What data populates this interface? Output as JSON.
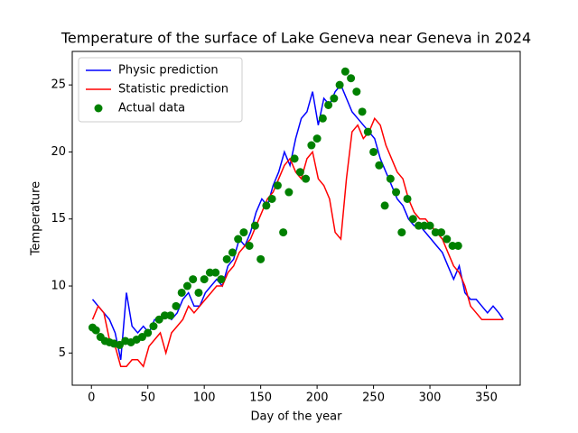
{
  "chart_data": {
    "type": "line",
    "title": "Temperature of the surface of Lake Geneva near Geneva in 2024",
    "x_label": "Day of the year",
    "y_label": "Temperature",
    "xlim": [
      -17,
      380
    ],
    "ylim": [
      2.6,
      27.5
    ],
    "xticks": [
      0,
      50,
      100,
      150,
      200,
      250,
      300,
      350
    ],
    "yticks": [
      5,
      10,
      15,
      20,
      25
    ],
    "legend": "upper left",
    "x": [
      1,
      6,
      11,
      16,
      21,
      26,
      31,
      36,
      41,
      46,
      51,
      56,
      61,
      66,
      71,
      76,
      81,
      86,
      91,
      96,
      101,
      106,
      111,
      116,
      121,
      126,
      131,
      136,
      141,
      146,
      151,
      156,
      161,
      166,
      171,
      176,
      181,
      186,
      191,
      196,
      201,
      206,
      211,
      216,
      221,
      226,
      231,
      236,
      241,
      246,
      251,
      256,
      261,
      266,
      271,
      276,
      281,
      286,
      291,
      296,
      301,
      306,
      311,
      316,
      321,
      326,
      331,
      336,
      341,
      346,
      351,
      356,
      361,
      365
    ],
    "series": [
      {
        "name": "Physic prediction",
        "color": "#0000ff",
        "values": [
          9.0,
          8.5,
          8.0,
          7.5,
          6.5,
          4.5,
          9.5,
          7.0,
          6.5,
          7.0,
          6.5,
          7.5,
          7.5,
          8.0,
          7.5,
          8.0,
          9.0,
          9.5,
          8.5,
          8.5,
          9.5,
          10.0,
          10.5,
          10.0,
          11.5,
          12.0,
          13.5,
          13.0,
          14.0,
          15.5,
          16.5,
          16.0,
          17.5,
          18.5,
          20.0,
          19.0,
          21.0,
          22.5,
          23.0,
          24.5,
          22.0,
          24.0,
          23.5,
          24.5,
          25.0,
          24.0,
          23.0,
          22.5,
          22.0,
          21.5,
          21.0,
          19.5,
          18.5,
          17.5,
          16.5,
          16.0,
          15.0,
          14.5,
          14.5,
          14.0,
          13.5,
          13.0,
          12.5,
          11.5,
          10.5,
          11.5,
          9.5,
          9.0,
          9.0,
          8.5,
          8.0,
          8.5,
          8.0,
          7.5
        ]
      },
      {
        "name": "Statistic prediction",
        "color": "#ff0000",
        "values": [
          7.5,
          8.5,
          8.0,
          6.0,
          5.5,
          4.0,
          4.0,
          4.5,
          4.5,
          4.0,
          5.5,
          6.0,
          6.5,
          5.0,
          6.5,
          7.0,
          7.5,
          8.5,
          8.0,
          8.5,
          9.0,
          9.5,
          10.0,
          10.0,
          11.0,
          11.5,
          12.5,
          13.0,
          13.5,
          14.5,
          15.5,
          16.5,
          17.0,
          18.0,
          19.0,
          19.5,
          18.5,
          18.0,
          19.5,
          20.0,
          18.0,
          17.5,
          16.5,
          14.0,
          13.5,
          18.0,
          21.5,
          22.0,
          21.0,
          21.5,
          22.5,
          22.0,
          20.5,
          19.5,
          18.5,
          18.0,
          16.5,
          15.5,
          15.0,
          15.0,
          14.5,
          14.0,
          13.5,
          12.5,
          11.5,
          11.0,
          10.0,
          8.5,
          8.0,
          7.5,
          7.5,
          7.5,
          7.5,
          7.5
        ]
      }
    ],
    "scatter": {
      "name": "Actual data",
      "color": "#008000",
      "x": [
        1,
        4,
        8,
        12,
        16,
        20,
        25,
        30,
        35,
        40,
        45,
        50,
        55,
        60,
        65,
        70,
        75,
        80,
        85,
        90,
        95,
        100,
        105,
        110,
        115,
        120,
        125,
        130,
        135,
        140,
        145,
        150,
        155,
        160,
        165,
        170,
        175,
        180,
        185,
        190,
        195,
        200,
        205,
        210,
        215,
        220,
        225,
        230,
        235,
        240,
        245,
        250,
        255,
        260,
        265,
        270,
        275,
        280,
        285,
        290,
        295,
        300,
        305,
        310,
        315,
        320,
        325
      ],
      "values": [
        6.9,
        6.7,
        6.2,
        5.9,
        5.8,
        5.7,
        5.6,
        5.9,
        5.8,
        6.0,
        6.2,
        6.5,
        7.0,
        7.5,
        7.8,
        7.8,
        8.5,
        9.5,
        10.0,
        10.5,
        9.5,
        10.5,
        11.0,
        11.0,
        10.5,
        12.0,
        12.5,
        13.5,
        14.0,
        13.0,
        14.5,
        12.0,
        16.0,
        16.5,
        17.5,
        14.0,
        17.0,
        19.5,
        18.5,
        18.0,
        20.5,
        21.0,
        22.5,
        23.5,
        24.0,
        25.0,
        26.0,
        25.5,
        24.5,
        23.0,
        21.5,
        20.0,
        19.0,
        16.0,
        18.0,
        17.0,
        14.0,
        16.5,
        15.0,
        14.5,
        14.5,
        14.5,
        14.0,
        14.0,
        13.5,
        13.0,
        13.0
      ]
    }
  }
}
